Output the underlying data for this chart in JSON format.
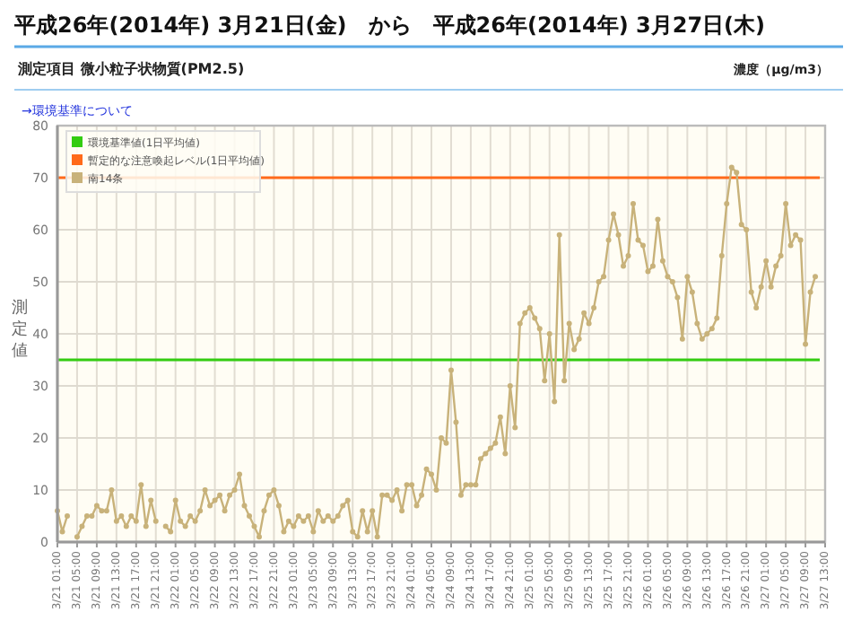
{
  "chart_data": {
    "type": "line",
    "title": "平成26年(2014年) 3月21日(金)　から　平成26年(2014年) 3月27日(木)",
    "subtitle": "測定項目 微小粒子状物質(PM2.5)",
    "annotations": [
      "濃度（μg/m3）",
      "→環境基準について"
    ],
    "ylabel": "測定値",
    "categories": [
      "3/21 01:00",
      null,
      null,
      null,
      "3/21 05:00",
      null,
      null,
      null,
      "3/21 09:00",
      null,
      null,
      null,
      "3/21 13:00",
      null,
      null,
      null,
      "3/21 17:00",
      null,
      null,
      null,
      "3/21 21:00",
      null,
      null,
      null,
      "3/22 01:00",
      null,
      null,
      null,
      "3/22 05:00",
      null,
      null,
      null,
      "3/22 09:00",
      null,
      null,
      null,
      "3/22 13:00",
      null,
      null,
      null,
      "3/22 17:00",
      null,
      null,
      null,
      "3/22 21:00",
      null,
      null,
      null,
      "3/23 01:00",
      null,
      null,
      null,
      "3/23 05:00",
      null,
      null,
      null,
      "3/23 09:00",
      null,
      null,
      null,
      "3/23 13:00",
      null,
      null,
      null,
      "3/23 17:00",
      null,
      null,
      null,
      "3/23 21:00",
      null,
      null,
      null,
      "3/24 01:00",
      null,
      null,
      null,
      "3/24 05:00",
      null,
      null,
      null,
      "3/24 09:00",
      null,
      null,
      null,
      "3/24 13:00",
      null,
      null,
      null,
      "3/24 17:00",
      null,
      null,
      null,
      "3/24 21:00",
      null,
      null,
      null,
      "3/25 01:00",
      null,
      null,
      null,
      "3/25 05:00",
      null,
      null,
      null,
      "3/25 09:00",
      null,
      null,
      null,
      "3/25 13:00",
      null,
      null,
      null,
      "3/25 17:00",
      null,
      null,
      null,
      "3/25 21:00",
      null,
      null,
      null,
      "3/26 01:00",
      null,
      null,
      null,
      "3/26 05:00",
      null,
      null,
      null,
      "3/26 09:00",
      null,
      null,
      null,
      "3/26 13:00",
      null,
      null,
      null,
      "3/26 17:00",
      null,
      null,
      null,
      "3/26 21:00",
      null,
      null,
      null,
      "3/27 01:00",
      null,
      null,
      null,
      "3/27 05:00",
      null,
      null,
      null,
      "3/27 09:00",
      null,
      null,
      null,
      "3/27 13:00"
    ],
    "series": [
      {
        "name": "南14条",
        "color": "#c8b27a",
        "values": [
          6,
          2,
          5,
          null,
          1,
          3,
          5,
          5,
          7,
          6,
          6,
          10,
          4,
          5,
          3,
          5,
          4,
          11,
          3,
          8,
          4,
          null,
          3,
          2,
          8,
          4,
          3,
          5,
          4,
          6,
          10,
          7,
          8,
          9,
          6,
          9,
          10,
          13,
          7,
          5,
          3,
          1,
          6,
          9,
          10,
          7,
          2,
          4,
          3,
          5,
          4,
          5,
          2,
          6,
          4,
          5,
          4,
          5,
          7,
          8,
          2,
          1,
          6,
          2,
          6,
          1,
          9,
          9,
          8,
          10,
          6,
          11,
          11,
          7,
          9,
          14,
          13,
          10,
          20,
          19,
          33,
          23,
          9,
          11,
          11,
          11,
          16,
          17,
          18,
          19,
          24,
          17,
          30,
          22,
          42,
          44,
          45,
          43,
          41,
          31,
          40,
          27,
          59,
          31,
          42,
          37,
          39,
          44,
          42,
          45,
          50,
          51,
          58,
          63,
          59,
          53,
          55,
          65,
          58,
          57,
          52,
          53,
          62,
          54,
          51,
          50,
          47,
          39,
          51,
          48,
          42,
          39,
          40,
          41,
          43,
          55,
          65,
          72,
          71,
          61,
          60,
          48,
          45,
          49,
          54,
          49,
          53,
          55,
          65,
          57,
          59,
          58,
          38,
          48,
          51,
          null,
          null
        ]
      }
    ],
    "ylim": [
      0,
      80
    ],
    "yticks": [
      0,
      10,
      20,
      30,
      40,
      50,
      60,
      70,
      80
    ],
    "ref_lines": [
      {
        "axis": "y",
        "value": 35,
        "label": "環境基準値(1日平均値)",
        "color": "#33cc11"
      },
      {
        "axis": "y",
        "value": 70,
        "label": "暫定的な注意喚起レベル(1日平均値)",
        "color": "#ff6a1a"
      }
    ],
    "grid": true,
    "legend": "top left",
    "marker": "circle",
    "line_style": "solid"
  }
}
